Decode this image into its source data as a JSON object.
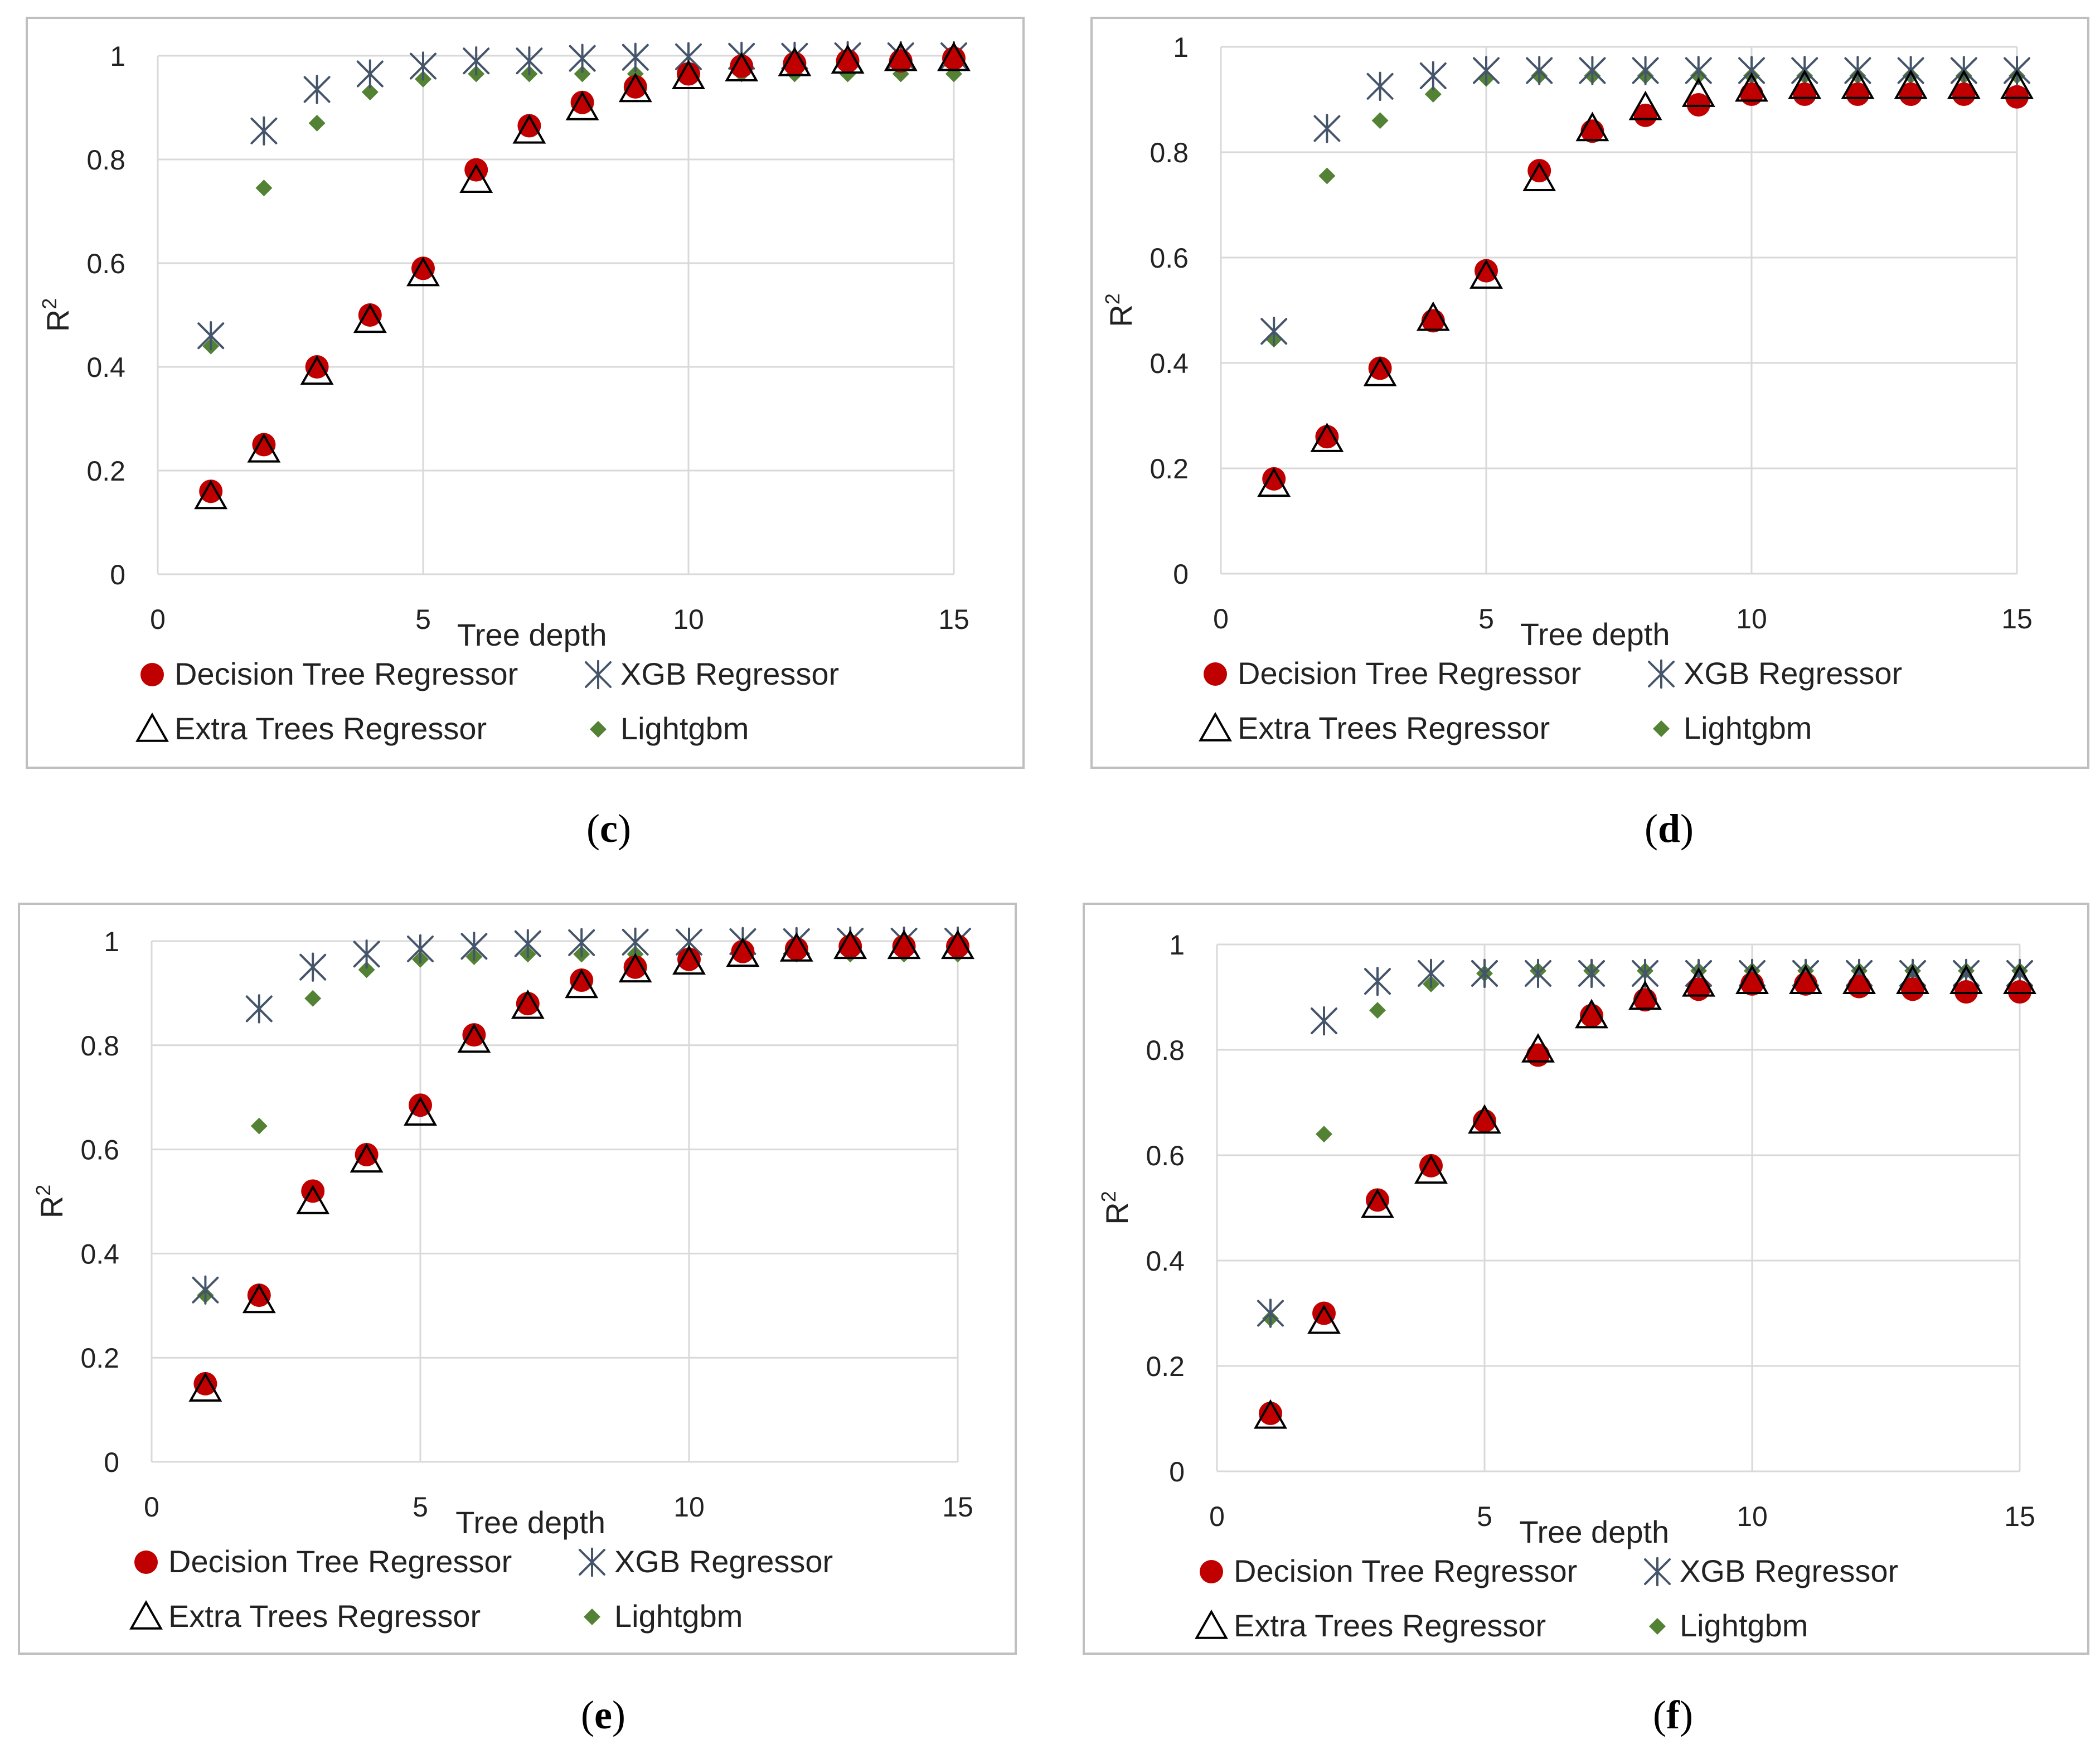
{
  "colors": {
    "decision_tree": "#c00000",
    "xgb": "#44546a",
    "extra_trees": "#000000",
    "lightgbm": "#548235",
    "grid": "#d9d9d9",
    "frame": "#bfbfbf"
  },
  "chart_data": [
    {
      "type": "scatter",
      "caption": "(c)",
      "title": "",
      "xlabel": "Tree depth",
      "ylabel": "R2",
      "xlim": [
        0,
        15
      ],
      "ylim": [
        0,
        1
      ],
      "xticks": [
        0,
        5,
        10,
        15
      ],
      "yticks": [
        0,
        0.2,
        0.4,
        0.6,
        0.8,
        1
      ],
      "grid": true,
      "legend_position": "bottom",
      "x": [
        1,
        2,
        3,
        4,
        5,
        6,
        7,
        8,
        9,
        10,
        11,
        12,
        13,
        14,
        15
      ],
      "series": [
        {
          "name": "Decision Tree Regressor",
          "marker": "circle",
          "values": [
            0.16,
            0.25,
            0.4,
            0.5,
            0.59,
            0.78,
            0.865,
            0.91,
            0.94,
            0.965,
            0.98,
            0.985,
            0.99,
            0.99,
            0.995
          ]
        },
        {
          "name": "XGB Regressor",
          "marker": "asterisk",
          "values": [
            0.46,
            0.855,
            0.935,
            0.965,
            0.98,
            0.99,
            0.99,
            0.995,
            0.997,
            0.998,
            0.999,
            0.999,
            1.0,
            1.0,
            1.0
          ]
        },
        {
          "name": "Extra Trees Regressor",
          "marker": "triangle",
          "values": [
            0.15,
            0.24,
            0.39,
            0.49,
            0.58,
            0.76,
            0.855,
            0.9,
            0.935,
            0.96,
            0.975,
            0.985,
            0.99,
            0.995,
            0.995
          ]
        },
        {
          "name": "Lightgbm",
          "marker": "diamond",
          "values": [
            0.44,
            0.745,
            0.87,
            0.93,
            0.955,
            0.965,
            0.965,
            0.965,
            0.965,
            0.965,
            0.965,
            0.965,
            0.965,
            0.965,
            0.965
          ]
        }
      ]
    },
    {
      "type": "scatter",
      "caption": "(d)",
      "title": "",
      "xlabel": "Tree depth",
      "ylabel": "R2",
      "xlim": [
        0,
        15
      ],
      "ylim": [
        0,
        1
      ],
      "xticks": [
        0,
        5,
        10,
        15
      ],
      "yticks": [
        0,
        0.2,
        0.4,
        0.6,
        0.8,
        1
      ],
      "grid": true,
      "legend_position": "bottom",
      "x": [
        1,
        2,
        3,
        4,
        5,
        6,
        7,
        8,
        9,
        10,
        11,
        12,
        13,
        14,
        15
      ],
      "series": [
        {
          "name": "Decision Tree Regressor",
          "marker": "circle",
          "values": [
            0.18,
            0.26,
            0.39,
            0.48,
            0.575,
            0.765,
            0.84,
            0.87,
            0.89,
            0.91,
            0.91,
            0.91,
            0.91,
            0.91,
            0.905
          ]
        },
        {
          "name": "XGB Regressor",
          "marker": "asterisk",
          "values": [
            0.46,
            0.845,
            0.925,
            0.945,
            0.955,
            0.955,
            0.955,
            0.955,
            0.955,
            0.955,
            0.955,
            0.955,
            0.955,
            0.955,
            0.955
          ]
        },
        {
          "name": "Extra Trees Regressor",
          "marker": "triangle",
          "values": [
            0.17,
            0.255,
            0.38,
            0.485,
            0.565,
            0.75,
            0.845,
            0.885,
            0.91,
            0.92,
            0.925,
            0.925,
            0.925,
            0.925,
            0.925
          ]
        },
        {
          "name": "Lightgbm",
          "marker": "diamond",
          "values": [
            0.445,
            0.755,
            0.86,
            0.91,
            0.94,
            0.945,
            0.945,
            0.945,
            0.945,
            0.945,
            0.945,
            0.945,
            0.945,
            0.945,
            0.945
          ]
        }
      ]
    },
    {
      "type": "scatter",
      "caption": "(e)",
      "title": "",
      "xlabel": "Tree depth",
      "ylabel": "R2",
      "xlim": [
        0,
        15
      ],
      "ylim": [
        0,
        1
      ],
      "xticks": [
        0,
        5,
        10,
        15
      ],
      "yticks": [
        0,
        0.2,
        0.4,
        0.6,
        0.8,
        1
      ],
      "grid": true,
      "legend_position": "bottom",
      "x": [
        1,
        2,
        3,
        4,
        5,
        6,
        7,
        8,
        9,
        10,
        11,
        12,
        13,
        14,
        15
      ],
      "series": [
        {
          "name": "Decision Tree Regressor",
          "marker": "circle",
          "values": [
            0.15,
            0.32,
            0.52,
            0.59,
            0.685,
            0.82,
            0.88,
            0.925,
            0.95,
            0.965,
            0.98,
            0.985,
            0.99,
            0.99,
            0.99
          ]
        },
        {
          "name": "XGB Regressor",
          "marker": "asterisk",
          "values": [
            0.33,
            0.87,
            0.95,
            0.975,
            0.985,
            0.99,
            0.995,
            0.997,
            0.998,
            0.998,
            0.999,
            0.999,
            1.0,
            1.0,
            1.0
          ]
        },
        {
          "name": "Extra Trees Regressor",
          "marker": "triangle",
          "values": [
            0.14,
            0.31,
            0.5,
            0.58,
            0.67,
            0.81,
            0.875,
            0.915,
            0.945,
            0.96,
            0.975,
            0.985,
            0.99,
            0.99,
            0.99
          ]
        },
        {
          "name": "Lightgbm",
          "marker": "diamond",
          "values": [
            0.32,
            0.645,
            0.89,
            0.945,
            0.965,
            0.97,
            0.975,
            0.975,
            0.975,
            0.975,
            0.975,
            0.975,
            0.975,
            0.975,
            0.975
          ]
        }
      ]
    },
    {
      "type": "scatter",
      "caption": "(f)",
      "title": "",
      "xlabel": "Tree depth",
      "ylabel": "R2",
      "xlim": [
        0,
        15
      ],
      "ylim": [
        0,
        1
      ],
      "xticks": [
        0,
        5,
        10,
        15
      ],
      "yticks": [
        0,
        0.2,
        0.4,
        0.6,
        0.8,
        1
      ],
      "grid": true,
      "legend_position": "bottom",
      "x": [
        1,
        2,
        3,
        4,
        5,
        6,
        7,
        8,
        9,
        10,
        11,
        12,
        13,
        14,
        15
      ],
      "series": [
        {
          "name": "Decision Tree Regressor",
          "marker": "circle",
          "values": [
            0.11,
            0.3,
            0.515,
            0.58,
            0.665,
            0.79,
            0.865,
            0.895,
            0.915,
            0.925,
            0.925,
            0.92,
            0.915,
            0.91,
            0.91
          ]
        },
        {
          "name": "XGB Regressor",
          "marker": "asterisk",
          "values": [
            0.3,
            0.855,
            0.93,
            0.945,
            0.945,
            0.945,
            0.945,
            0.945,
            0.945,
            0.945,
            0.945,
            0.945,
            0.945,
            0.945,
            0.945
          ]
        },
        {
          "name": "Extra Trees Regressor",
          "marker": "triangle",
          "values": [
            0.105,
            0.285,
            0.505,
            0.57,
            0.665,
            0.8,
            0.865,
            0.9,
            0.925,
            0.93,
            0.93,
            0.93,
            0.93,
            0.93,
            0.93
          ]
        },
        {
          "name": "Lightgbm",
          "marker": "diamond",
          "values": [
            0.29,
            0.64,
            0.875,
            0.925,
            0.945,
            0.95,
            0.95,
            0.95,
            0.95,
            0.95,
            0.95,
            0.95,
            0.95,
            0.95,
            0.95
          ]
        }
      ]
    }
  ]
}
